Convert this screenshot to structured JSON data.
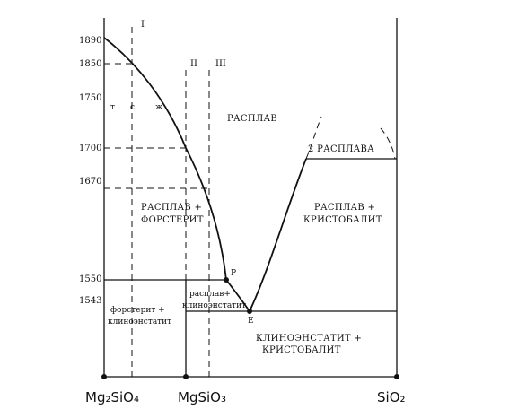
{
  "temperature_ticks": [
    "1890",
    "1850",
    "1750",
    "1700",
    "1670",
    "1550",
    "1543"
  ],
  "section_labels": [
    "I",
    "II",
    "III"
  ],
  "regions": {
    "melt": "РАСПЛАВ",
    "two_melts": "2 РАСПЛАВА",
    "melt_forsterite": [
      "РАСПЛАВ +",
      "ФОРСТЕРИТ"
    ],
    "melt_cristobalite": [
      "РАСПЛАВ +",
      "КРИСТОБАЛИТ"
    ],
    "forsterite_clinoenstatite": [
      "форстерит +",
      "клиноэнстатит"
    ],
    "melt_clinoenstatite": [
      "расплав+",
      "клиноэнстатит"
    ],
    "clinoenstatite_cristobalite": [
      "КЛИНОЭНСТАТИТ +",
      "КРИСТОБАЛИТ"
    ]
  },
  "cooling_marks": [
    "т",
    "с",
    "ж"
  ],
  "points": {
    "peritectic": "P",
    "eutectic": "E"
  },
  "compositions": [
    "Mg₂SiO₄",
    "MgSiO₃",
    "SiO₂"
  ]
}
